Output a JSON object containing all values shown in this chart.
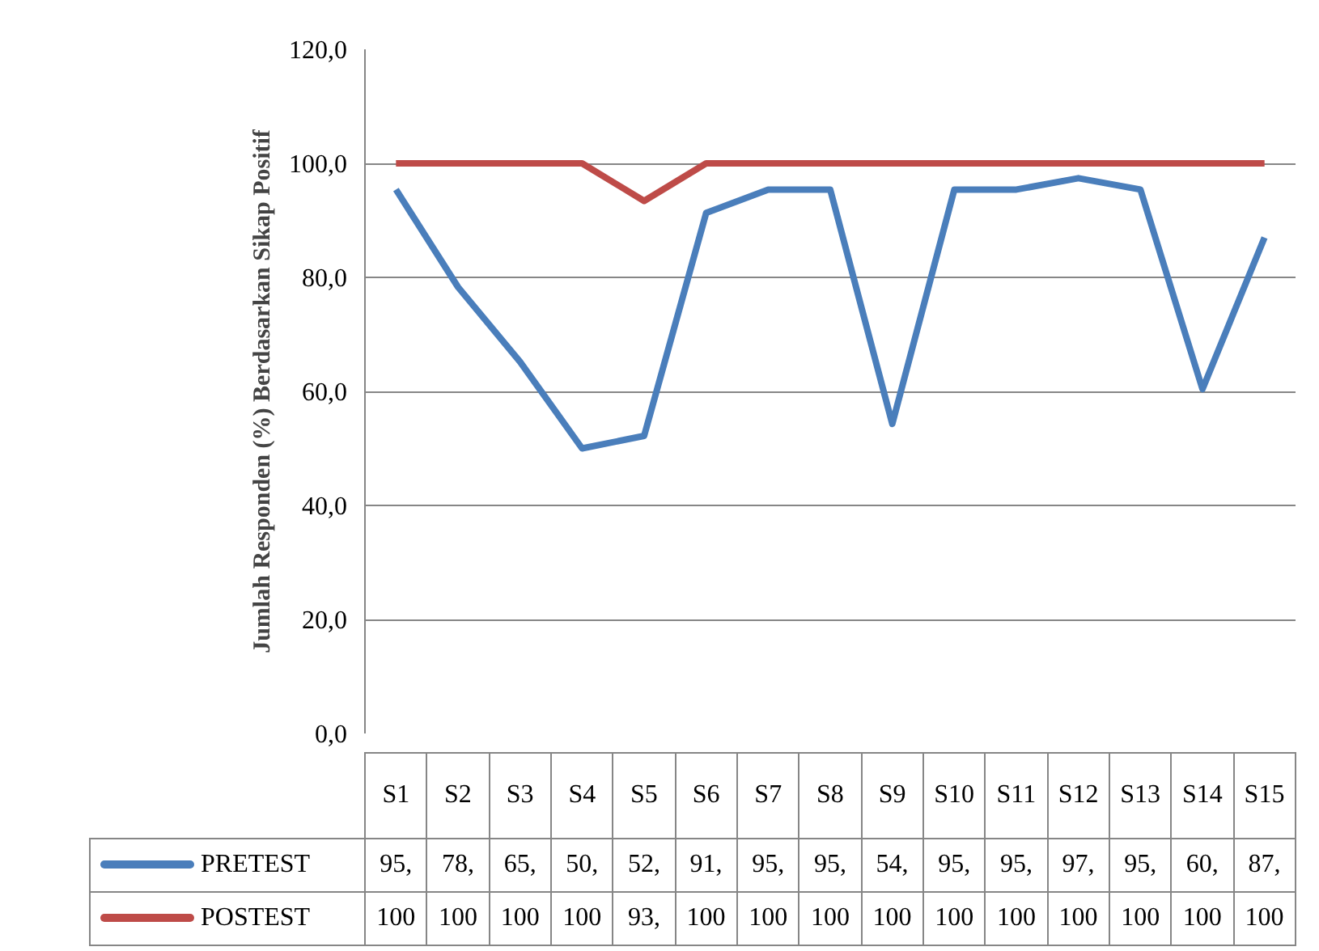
{
  "chart_data": {
    "type": "line",
    "ylabel": "Jumlah Responden (%) Berdasarkan Sikap Positif",
    "categories": [
      "S1",
      "S2",
      "S3",
      "S4",
      "S5",
      "S6",
      "S7",
      "S8",
      "S9",
      "S10",
      "S11",
      "S12",
      "S13",
      "S14",
      "S15"
    ],
    "series": [
      {
        "name": "PRETEST",
        "color": "#4a7ebb",
        "values": [
          95.4,
          78.3,
          65.2,
          50.0,
          52.2,
          91.3,
          95.4,
          95.4,
          54.3,
          95.4,
          95.4,
          97.4,
          95.4,
          60.4,
          87.0
        ],
        "value_labels": [
          "95,",
          "78,",
          "65,",
          "50,",
          "52,",
          "91,",
          "95,",
          "95,",
          "54,",
          "95,",
          "95,",
          "97,",
          "95,",
          "60,",
          "87,"
        ]
      },
      {
        "name": "POSTEST",
        "color": "#be4b48",
        "values": [
          100,
          100,
          100,
          100,
          93.4,
          100,
          100,
          100,
          100,
          100,
          100,
          100,
          100,
          100,
          100
        ],
        "value_labels": [
          "100",
          "100",
          "100",
          "100",
          "93,",
          "100",
          "100",
          "100",
          "100",
          "100",
          "100",
          "100",
          "100",
          "100",
          "100"
        ]
      }
    ],
    "ylim": [
      0,
      120
    ],
    "yticks": [
      {
        "value": 0,
        "label": "0,0"
      },
      {
        "value": 20,
        "label": "20,0"
      },
      {
        "value": 40,
        "label": "40,0"
      },
      {
        "value": 60,
        "label": "60,0"
      },
      {
        "value": 80,
        "label": "80,0"
      },
      {
        "value": 100,
        "label": "100,0"
      },
      {
        "value": 120,
        "label": "120,0"
      }
    ],
    "grid": "y",
    "legend": "bottom",
    "marker": "none",
    "line_style": "solid"
  }
}
